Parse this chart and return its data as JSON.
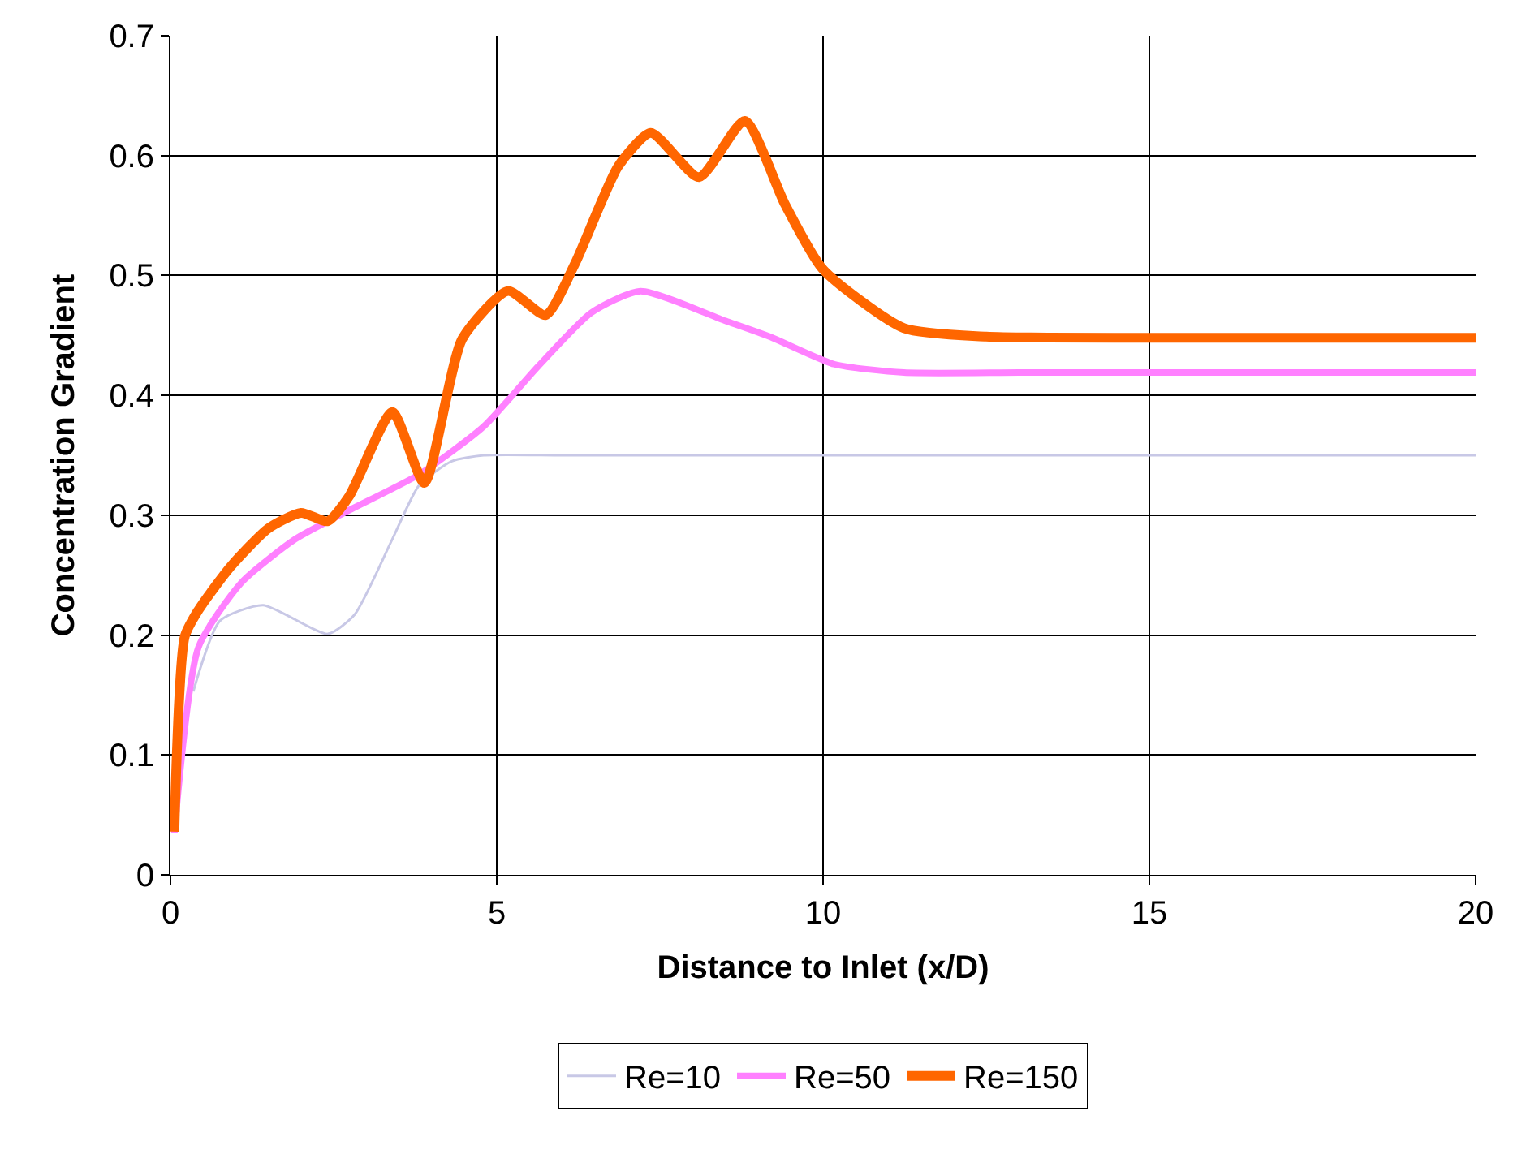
{
  "chart_data": {
    "type": "line",
    "xlabel": "Distance to Inlet (x/D)",
    "ylabel": "Concentration Gradient",
    "xlim": [
      0,
      20
    ],
    "xticks": [
      0,
      5,
      10,
      15,
      20
    ],
    "ylim": [
      0,
      0.7
    ],
    "yticks": [
      0,
      0.1,
      0.2,
      0.3,
      0.4,
      0.5,
      0.6,
      0.7
    ],
    "grid": true,
    "legend": "bottom",
    "marker": "none",
    "line_style": "solid",
    "series": [
      {
        "name": "Re=10",
        "color": "#c8c8e6",
        "x": [
          0.35,
          0.76,
          1.42,
          2.41,
          2.82,
          3.4,
          3.81,
          4.31,
          4.8,
          6,
          8,
          10,
          12,
          15,
          20
        ],
        "values": [
          0.153,
          0.212,
          0.225,
          0.201,
          0.217,
          0.28,
          0.325,
          0.345,
          0.35,
          0.35,
          0.35,
          0.35,
          0.35,
          0.35,
          0.35
        ]
      },
      {
        "name": "Re=50",
        "color": "#ff80ff",
        "x": [
          0.06,
          0.43,
          1.09,
          1.91,
          2.66,
          3.81,
          4.8,
          5.63,
          6.45,
          7.2,
          8.51,
          9.18,
          10.17,
          11.24,
          13,
          15,
          20
        ],
        "values": [
          0.035,
          0.19,
          0.244,
          0.28,
          0.302,
          0.334,
          0.374,
          0.424,
          0.469,
          0.487,
          0.462,
          0.449,
          0.426,
          0.419,
          0.419,
          0.419,
          0.419
        ]
      },
      {
        "name": "Re=150",
        "color": "#ff6600",
        "x": [
          0.06,
          0.22,
          0.43,
          0.92,
          1.5,
          2.0,
          2.41,
          2.74,
          3.4,
          3.89,
          4.47,
          5.17,
          5.75,
          6.2,
          6.86,
          7.36,
          8.1,
          8.8,
          9.42,
          10.0,
          11.24,
          12.5,
          15,
          20
        ],
        "values": [
          0.036,
          0.199,
          0.221,
          0.257,
          0.289,
          0.302,
          0.295,
          0.316,
          0.386,
          0.327,
          0.447,
          0.487,
          0.467,
          0.51,
          0.591,
          0.619,
          0.582,
          0.629,
          0.559,
          0.505,
          0.456,
          0.449,
          0.448,
          0.448
        ]
      }
    ]
  }
}
